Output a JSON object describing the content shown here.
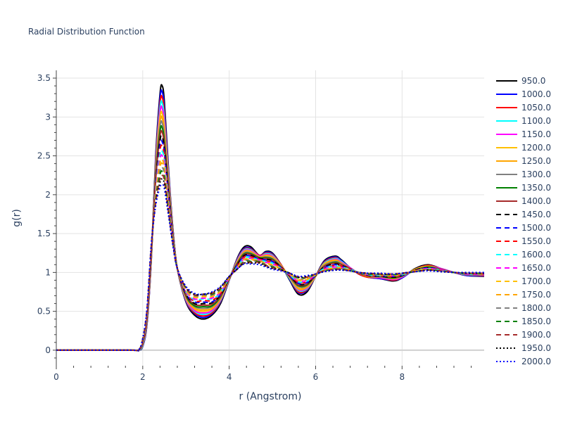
{
  "chart_data": {
    "type": "line",
    "title": "Radial Distribution Function",
    "xlabel": "r (Angstrom)",
    "ylabel": "g(r)",
    "xlim": [
      0,
      9.9
    ],
    "ylim": [
      -0.2,
      3.6
    ],
    "x_ticks": [
      0,
      2,
      4,
      6,
      8
    ],
    "x_tick_labels": [
      "0",
      "2",
      "4",
      "6",
      "8"
    ],
    "y_ticks": [
      0,
      0.5,
      1,
      1.5,
      2,
      2.5,
      3,
      3.5
    ],
    "y_tick_labels": [
      "0",
      "0.5",
      "1",
      "1.5",
      "2",
      "2.5",
      "3",
      "3.5"
    ],
    "grid": true,
    "legend_position": "right",
    "x": [
      0,
      1.7,
      1.9,
      2.0,
      2.1,
      2.2,
      2.3,
      2.4,
      2.45,
      2.5,
      2.6,
      2.7,
      2.8,
      3.0,
      3.2,
      3.4,
      3.6,
      3.8,
      4.0,
      4.2,
      4.35,
      4.5,
      4.7,
      4.85,
      5.0,
      5.2,
      5.4,
      5.6,
      5.8,
      6.0,
      6.2,
      6.45,
      6.6,
      6.8,
      7.0,
      7.2,
      7.5,
      7.8,
      8.0,
      8.3,
      8.6,
      8.9,
      9.2,
      9.5,
      9.9
    ],
    "series": [
      {
        "name": "950.0",
        "color": "#000000",
        "dash": "solid",
        "values": [
          0,
          0,
          0,
          0.05,
          0.35,
          1.2,
          2.5,
          3.3,
          3.4,
          3.2,
          2.3,
          1.55,
          1.05,
          0.62,
          0.45,
          0.4,
          0.45,
          0.6,
          0.9,
          1.2,
          1.33,
          1.33,
          1.22,
          1.27,
          1.25,
          1.1,
          0.9,
          0.72,
          0.75,
          0.95,
          1.15,
          1.21,
          1.16,
          1.06,
          0.98,
          0.94,
          0.92,
          0.89,
          0.93,
          1.05,
          1.1,
          1.05,
          1.0,
          0.96,
          0.95
        ]
      },
      {
        "name": "1000.0",
        "color": "#0000ff",
        "dash": "solid",
        "values": [
          0,
          0,
          0,
          0.05,
          0.34,
          1.18,
          2.45,
          3.25,
          3.32,
          3.12,
          2.27,
          1.54,
          1.05,
          0.63,
          0.47,
          0.42,
          0.47,
          0.62,
          0.9,
          1.19,
          1.31,
          1.31,
          1.22,
          1.26,
          1.24,
          1.1,
          0.91,
          0.74,
          0.77,
          0.95,
          1.14,
          1.2,
          1.15,
          1.06,
          0.98,
          0.94,
          0.92,
          0.9,
          0.93,
          1.04,
          1.09,
          1.05,
          1.0,
          0.96,
          0.96
        ]
      },
      {
        "name": "1050.0",
        "color": "#ff0000",
        "dash": "solid",
        "values": [
          0,
          0,
          0,
          0.06,
          0.36,
          1.19,
          2.42,
          3.18,
          3.25,
          3.05,
          2.24,
          1.53,
          1.05,
          0.64,
          0.48,
          0.44,
          0.48,
          0.63,
          0.91,
          1.18,
          1.3,
          1.3,
          1.22,
          1.25,
          1.23,
          1.1,
          0.92,
          0.75,
          0.78,
          0.95,
          1.13,
          1.19,
          1.14,
          1.06,
          0.98,
          0.94,
          0.93,
          0.9,
          0.94,
          1.04,
          1.09,
          1.05,
          1.0,
          0.97,
          0.96
        ]
      },
      {
        "name": "1100.0",
        "color": "#00ffff",
        "dash": "solid",
        "values": [
          0,
          0,
          0,
          0.06,
          0.37,
          1.2,
          2.38,
          3.12,
          3.18,
          2.98,
          2.21,
          1.52,
          1.05,
          0.65,
          0.5,
          0.46,
          0.5,
          0.64,
          0.91,
          1.17,
          1.29,
          1.29,
          1.21,
          1.24,
          1.22,
          1.09,
          0.92,
          0.77,
          0.79,
          0.95,
          1.12,
          1.18,
          1.14,
          1.06,
          0.99,
          0.95,
          0.93,
          0.91,
          0.94,
          1.04,
          1.08,
          1.05,
          1.0,
          0.97,
          0.96
        ]
      },
      {
        "name": "1150.0",
        "color": "#ff00ff",
        "dash": "solid",
        "values": [
          0,
          0,
          0,
          0.07,
          0.38,
          1.21,
          2.35,
          3.06,
          3.11,
          2.92,
          2.18,
          1.51,
          1.05,
          0.66,
          0.51,
          0.48,
          0.51,
          0.65,
          0.91,
          1.16,
          1.28,
          1.28,
          1.21,
          1.23,
          1.21,
          1.09,
          0.93,
          0.78,
          0.8,
          0.95,
          1.11,
          1.17,
          1.13,
          1.06,
          0.99,
          0.95,
          0.93,
          0.91,
          0.94,
          1.04,
          1.08,
          1.05,
          1.0,
          0.97,
          0.96
        ]
      },
      {
        "name": "1200.0",
        "color": "#ffc000",
        "dash": "solid",
        "values": [
          0,
          0,
          0,
          0.07,
          0.39,
          1.22,
          2.32,
          3.0,
          3.04,
          2.86,
          2.15,
          1.5,
          1.05,
          0.67,
          0.53,
          0.5,
          0.53,
          0.66,
          0.91,
          1.15,
          1.27,
          1.27,
          1.2,
          1.22,
          1.2,
          1.09,
          0.93,
          0.79,
          0.81,
          0.95,
          1.11,
          1.16,
          1.12,
          1.05,
          0.99,
          0.95,
          0.94,
          0.92,
          0.95,
          1.04,
          1.08,
          1.04,
          1.0,
          0.97,
          0.97
        ]
      },
      {
        "name": "1250.0",
        "color": "#ffa500",
        "dash": "solid",
        "values": [
          0,
          0,
          0,
          0.08,
          0.4,
          1.23,
          2.29,
          2.94,
          2.98,
          2.8,
          2.12,
          1.49,
          1.05,
          0.68,
          0.54,
          0.52,
          0.54,
          0.67,
          0.92,
          1.14,
          1.26,
          1.26,
          1.2,
          1.21,
          1.19,
          1.08,
          0.94,
          0.8,
          0.82,
          0.96,
          1.1,
          1.15,
          1.12,
          1.05,
          0.99,
          0.95,
          0.94,
          0.92,
          0.95,
          1.03,
          1.07,
          1.04,
          1.0,
          0.97,
          0.97
        ]
      },
      {
        "name": "1300.0",
        "color": "#808080",
        "dash": "solid",
        "values": [
          0,
          0,
          0,
          0.08,
          0.41,
          1.24,
          2.26,
          2.88,
          2.92,
          2.74,
          2.09,
          1.48,
          1.05,
          0.69,
          0.56,
          0.54,
          0.56,
          0.68,
          0.92,
          1.13,
          1.25,
          1.25,
          1.19,
          1.2,
          1.18,
          1.08,
          0.94,
          0.82,
          0.83,
          0.96,
          1.09,
          1.14,
          1.11,
          1.05,
          0.99,
          0.96,
          0.94,
          0.93,
          0.95,
          1.03,
          1.07,
          1.04,
          1.0,
          0.97,
          0.97
        ]
      },
      {
        "name": "1350.0",
        "color": "#008000",
        "dash": "solid",
        "values": [
          0,
          0,
          0,
          0.09,
          0.42,
          1.25,
          2.23,
          2.82,
          2.86,
          2.69,
          2.06,
          1.47,
          1.05,
          0.7,
          0.57,
          0.56,
          0.57,
          0.69,
          0.92,
          1.13,
          1.24,
          1.24,
          1.19,
          1.19,
          1.17,
          1.07,
          0.95,
          0.83,
          0.84,
          0.96,
          1.08,
          1.13,
          1.1,
          1.05,
          0.99,
          0.96,
          0.95,
          0.93,
          0.96,
          1.03,
          1.07,
          1.04,
          1.0,
          0.98,
          0.97
        ]
      },
      {
        "name": "1400.0",
        "color": "#a52a2a",
        "dash": "solid",
        "values": [
          0,
          0,
          0,
          0.09,
          0.43,
          1.26,
          2.2,
          2.76,
          2.8,
          2.64,
          2.03,
          1.46,
          1.05,
          0.71,
          0.59,
          0.58,
          0.59,
          0.7,
          0.92,
          1.12,
          1.23,
          1.23,
          1.18,
          1.18,
          1.16,
          1.07,
          0.95,
          0.84,
          0.85,
          0.96,
          1.08,
          1.12,
          1.1,
          1.05,
          0.99,
          0.96,
          0.95,
          0.94,
          0.96,
          1.03,
          1.06,
          1.04,
          1.0,
          0.98,
          0.97
        ]
      },
      {
        "name": "1450.0",
        "color": "#000000",
        "dash": "dash",
        "values": [
          0,
          0,
          0,
          0.1,
          0.44,
          1.27,
          2.17,
          2.7,
          2.74,
          2.59,
          2.0,
          1.45,
          1.05,
          0.72,
          0.6,
          0.6,
          0.61,
          0.71,
          0.92,
          1.11,
          1.22,
          1.22,
          1.18,
          1.17,
          1.15,
          1.07,
          0.96,
          0.85,
          0.86,
          0.96,
          1.07,
          1.11,
          1.09,
          1.04,
          1.0,
          0.96,
          0.95,
          0.94,
          0.96,
          1.03,
          1.06,
          1.03,
          1.0,
          0.98,
          0.98
        ]
      },
      {
        "name": "1500.0",
        "color": "#0000ff",
        "dash": "dash",
        "values": [
          0,
          0,
          0,
          0.1,
          0.45,
          1.28,
          2.14,
          2.64,
          2.68,
          2.54,
          1.97,
          1.44,
          1.05,
          0.73,
          0.62,
          0.62,
          0.62,
          0.72,
          0.93,
          1.1,
          1.21,
          1.21,
          1.17,
          1.16,
          1.14,
          1.06,
          0.96,
          0.86,
          0.87,
          0.96,
          1.06,
          1.1,
          1.08,
          1.04,
          1.0,
          0.97,
          0.96,
          0.95,
          0.97,
          1.02,
          1.06,
          1.03,
          1.0,
          0.98,
          0.98
        ]
      },
      {
        "name": "1550.0",
        "color": "#ff0000",
        "dash": "dash",
        "values": [
          0,
          0,
          0,
          0.11,
          0.46,
          1.29,
          2.11,
          2.58,
          2.62,
          2.49,
          1.94,
          1.43,
          1.05,
          0.74,
          0.63,
          0.64,
          0.64,
          0.73,
          0.93,
          1.09,
          1.2,
          1.2,
          1.17,
          1.15,
          1.13,
          1.06,
          0.97,
          0.87,
          0.88,
          0.97,
          1.05,
          1.09,
          1.08,
          1.04,
          1.0,
          0.97,
          0.96,
          0.95,
          0.97,
          1.02,
          1.05,
          1.03,
          1.0,
          0.98,
          0.98
        ]
      },
      {
        "name": "1600.0",
        "color": "#00ffff",
        "dash": "dash",
        "values": [
          0,
          0,
          0,
          0.11,
          0.47,
          1.3,
          2.08,
          2.52,
          2.56,
          2.44,
          1.91,
          1.42,
          1.05,
          0.75,
          0.65,
          0.66,
          0.66,
          0.74,
          0.93,
          1.08,
          1.19,
          1.19,
          1.16,
          1.14,
          1.12,
          1.05,
          0.97,
          0.88,
          0.89,
          0.97,
          1.05,
          1.08,
          1.07,
          1.04,
          1.0,
          0.97,
          0.96,
          0.96,
          0.97,
          1.02,
          1.05,
          1.03,
          1.0,
          0.98,
          0.98
        ]
      },
      {
        "name": "1650.0",
        "color": "#ff00ff",
        "dash": "dash",
        "values": [
          0,
          0,
          0,
          0.12,
          0.48,
          1.31,
          2.05,
          2.46,
          2.5,
          2.39,
          1.88,
          1.41,
          1.05,
          0.76,
          0.66,
          0.67,
          0.67,
          0.75,
          0.93,
          1.07,
          1.18,
          1.18,
          1.16,
          1.13,
          1.11,
          1.05,
          0.97,
          0.89,
          0.9,
          0.97,
          1.04,
          1.07,
          1.06,
          1.03,
          1.0,
          0.97,
          0.97,
          0.96,
          0.98,
          1.02,
          1.05,
          1.03,
          1.0,
          0.98,
          0.98
        ]
      },
      {
        "name": "1700.0",
        "color": "#ffc000",
        "dash": "dash",
        "values": [
          0,
          0,
          0,
          0.12,
          0.49,
          1.32,
          2.02,
          2.41,
          2.45,
          2.34,
          1.85,
          1.4,
          1.05,
          0.77,
          0.68,
          0.69,
          0.69,
          0.76,
          0.93,
          1.07,
          1.17,
          1.17,
          1.15,
          1.12,
          1.1,
          1.05,
          0.98,
          0.9,
          0.91,
          0.97,
          1.03,
          1.06,
          1.06,
          1.03,
          1.0,
          0.98,
          0.97,
          0.96,
          0.98,
          1.02,
          1.04,
          1.02,
          1.0,
          0.99,
          0.98
        ]
      },
      {
        "name": "1750.0",
        "color": "#ffa500",
        "dash": "dash",
        "values": [
          0,
          0,
          0,
          0.13,
          0.5,
          1.33,
          1.99,
          2.36,
          2.4,
          2.3,
          1.82,
          1.39,
          1.05,
          0.78,
          0.69,
          0.7,
          0.7,
          0.77,
          0.94,
          1.06,
          1.16,
          1.16,
          1.15,
          1.11,
          1.09,
          1.04,
          0.98,
          0.91,
          0.92,
          0.97,
          1.03,
          1.05,
          1.05,
          1.03,
          1.0,
          0.98,
          0.97,
          0.97,
          0.98,
          1.02,
          1.04,
          1.02,
          1.0,
          0.99,
          0.99
        ]
      },
      {
        "name": "1800.0",
        "color": "#808080",
        "dash": "dash",
        "values": [
          0,
          0,
          0,
          0.13,
          0.51,
          1.34,
          1.96,
          2.31,
          2.35,
          2.26,
          1.8,
          1.38,
          1.05,
          0.79,
          0.7,
          0.71,
          0.71,
          0.78,
          0.94,
          1.06,
          1.15,
          1.15,
          1.14,
          1.1,
          1.08,
          1.04,
          0.98,
          0.92,
          0.93,
          0.97,
          1.02,
          1.05,
          1.05,
          1.03,
          1.0,
          0.98,
          0.97,
          0.97,
          0.98,
          1.01,
          1.04,
          1.02,
          1.0,
          0.99,
          0.99
        ]
      },
      {
        "name": "1850.0",
        "color": "#008000",
        "dash": "dash",
        "values": [
          0,
          0,
          0,
          0.14,
          0.52,
          1.35,
          1.93,
          2.26,
          2.3,
          2.22,
          1.78,
          1.37,
          1.05,
          0.8,
          0.71,
          0.72,
          0.72,
          0.79,
          0.94,
          1.05,
          1.14,
          1.14,
          1.14,
          1.09,
          1.07,
          1.04,
          0.99,
          0.93,
          0.94,
          0.98,
          1.02,
          1.04,
          1.04,
          1.02,
          1.0,
          0.98,
          0.98,
          0.97,
          0.99,
          1.01,
          1.03,
          1.02,
          1.0,
          0.99,
          0.99
        ]
      },
      {
        "name": "1900.0",
        "color": "#a52a2a",
        "dash": "dash",
        "values": [
          0,
          0,
          0,
          0.14,
          0.53,
          1.36,
          1.9,
          2.21,
          2.25,
          2.18,
          1.76,
          1.36,
          1.05,
          0.8,
          0.71,
          0.72,
          0.73,
          0.8,
          0.94,
          1.05,
          1.13,
          1.13,
          1.13,
          1.09,
          1.06,
          1.03,
          0.99,
          0.94,
          0.94,
          0.98,
          1.02,
          1.04,
          1.04,
          1.02,
          1.0,
          0.99,
          0.98,
          0.98,
          0.99,
          1.01,
          1.03,
          1.02,
          1.0,
          0.99,
          0.99
        ]
      },
      {
        "name": "1950.0",
        "color": "#000000",
        "dash": "dot",
        "values": [
          0,
          0,
          0,
          0.15,
          0.54,
          1.37,
          1.88,
          2.16,
          2.2,
          2.14,
          1.74,
          1.35,
          1.05,
          0.81,
          0.72,
          0.72,
          0.74,
          0.81,
          0.95,
          1.05,
          1.12,
          1.12,
          1.12,
          1.08,
          1.05,
          1.03,
          0.99,
          0.94,
          0.95,
          0.98,
          1.01,
          1.03,
          1.03,
          1.02,
          1.0,
          0.99,
          0.98,
          0.98,
          0.99,
          1.01,
          1.03,
          1.01,
          1.0,
          0.99,
          0.99
        ]
      },
      {
        "name": "2000.0",
        "color": "#0000ff",
        "dash": "dot",
        "values": [
          0,
          0,
          0,
          0.15,
          0.55,
          1.38,
          1.86,
          2.1,
          2.12,
          2.08,
          1.72,
          1.34,
          1.05,
          0.82,
          0.73,
          0.72,
          0.75,
          0.82,
          0.95,
          1.05,
          1.11,
          1.11,
          1.1,
          1.07,
          1.04,
          1.02,
          0.99,
          0.95,
          0.96,
          0.98,
          1.01,
          1.03,
          1.03,
          1.02,
          1.0,
          0.99,
          0.99,
          0.98,
          0.99,
          1.01,
          1.02,
          1.01,
          1.0,
          1.0,
          1.0
        ]
      }
    ]
  }
}
